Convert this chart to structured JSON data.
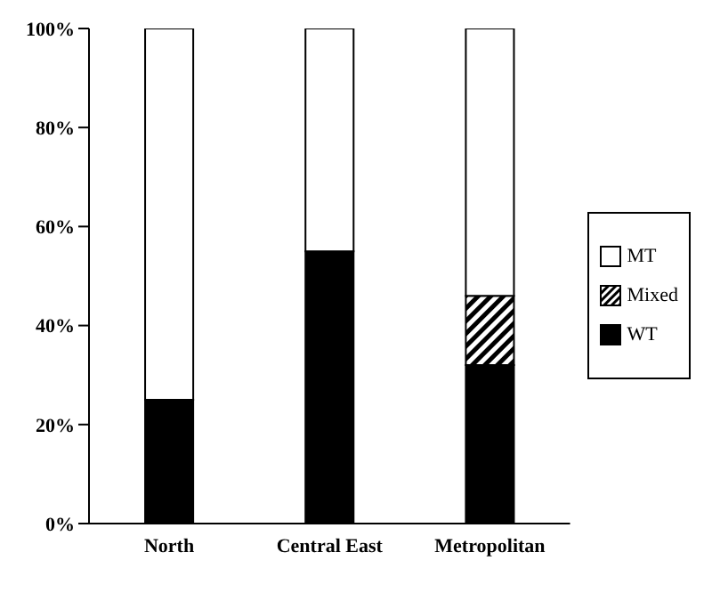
{
  "chart_data": {
    "type": "bar",
    "stacked": true,
    "categories": [
      "North",
      "Central East",
      "Metropolitan"
    ],
    "series": [
      {
        "name": "WT",
        "color": "#000000",
        "values": [
          25,
          55,
          32
        ]
      },
      {
        "name": "Mixed",
        "color": "#000000",
        "values": [
          0,
          0,
          14
        ]
      },
      {
        "name": "MT",
        "color": "#ffffff",
        "values": [
          75,
          45,
          54
        ]
      }
    ],
    "ylim": [
      0,
      100
    ],
    "yticks": [
      {
        "value": 0,
        "label": "0%"
      },
      {
        "value": 20,
        "label": "20%"
      },
      {
        "value": 40,
        "label": "40%"
      },
      {
        "value": 60,
        "label": "60%"
      },
      {
        "value": 80,
        "label": "80%"
      },
      {
        "value": 100,
        "label": "100%"
      }
    ],
    "legend": "right"
  }
}
